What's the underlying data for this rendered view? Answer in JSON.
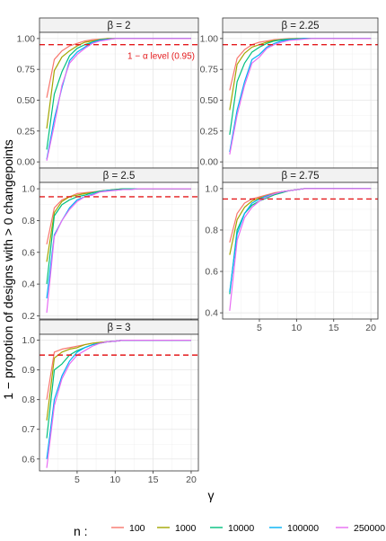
{
  "chart_data": {
    "type": "line",
    "ylabel": "1 − propotion of designs with > 0 changepoints",
    "xlabel": "γ",
    "legend": {
      "title": "n :",
      "placement": "bottom",
      "entries": [
        "100",
        "1000",
        "10000",
        "100000",
        "250000"
      ]
    },
    "series_colors": [
      "#F8766D",
      "#A3A500",
      "#00BF7D",
      "#00B0F6",
      "#E76BF3"
    ],
    "reference_line": {
      "y": 0.95,
      "color": "#e41a1c",
      "label": "1 − α level (0.95)"
    },
    "grid": true,
    "x": [
      1,
      2,
      3,
      4,
      5,
      6,
      7,
      8,
      9,
      10,
      11,
      12,
      13,
      14,
      15,
      16,
      17,
      18,
      19,
      20
    ],
    "x_ticks": [
      5,
      10,
      15,
      20
    ],
    "panels": [
      {
        "strip": "β = 2",
        "ylim": [
          -0.05,
          1.05
        ],
        "y_ticks": [
          0.0,
          0.25,
          0.5,
          0.75,
          1.0
        ],
        "y_tick_labels": [
          "0.00",
          "0.25",
          "0.50",
          "0.75",
          "1.00"
        ],
        "show_annotation": true,
        "series": [
          {
            "name": "100",
            "values": [
              0.52,
              0.83,
              0.9,
              0.94,
              0.96,
              0.98,
              0.99,
              0.995,
              1,
              1,
              1,
              1,
              1,
              1,
              1,
              1,
              1,
              1,
              1,
              1
            ]
          },
          {
            "name": "1000",
            "values": [
              0.27,
              0.74,
              0.85,
              0.9,
              0.94,
              0.97,
              0.98,
              0.99,
              1,
              1,
              1,
              1,
              1,
              1,
              1,
              1,
              1,
              1,
              1,
              1
            ]
          },
          {
            "name": "10000",
            "values": [
              0.1,
              0.55,
              0.73,
              0.86,
              0.92,
              0.95,
              0.97,
              0.99,
              0.995,
              1,
              1,
              1,
              1,
              1,
              1,
              1,
              1,
              1,
              1,
              1
            ]
          },
          {
            "name": "100000",
            "values": [
              0.02,
              0.35,
              0.6,
              0.82,
              0.89,
              0.93,
              0.97,
              0.985,
              0.995,
              1,
              1,
              1,
              1,
              1,
              1,
              1,
              1,
              1,
              1,
              1
            ]
          },
          {
            "name": "250000",
            "values": [
              0.01,
              0.3,
              0.62,
              0.8,
              0.87,
              0.92,
              0.96,
              0.98,
              0.99,
              1,
              1,
              1,
              1,
              1,
              1,
              1,
              1,
              1,
              1,
              1
            ]
          }
        ]
      },
      {
        "strip": "β = 2.25",
        "ylim": [
          -0.05,
          1.05
        ],
        "y_ticks": [
          0.0,
          0.25,
          0.5,
          0.75,
          1.0
        ],
        "y_tick_labels": [
          "0.00",
          "0.25",
          "0.50",
          "0.75",
          "1.00"
        ],
        "show_annotation": false,
        "series": [
          {
            "name": "100",
            "values": [
              0.58,
              0.84,
              0.91,
              0.95,
              0.97,
              0.98,
              0.99,
              0.995,
              1,
              1,
              1,
              1,
              1,
              1,
              1,
              1,
              1,
              1,
              1,
              1
            ]
          },
          {
            "name": "1000",
            "values": [
              0.42,
              0.79,
              0.88,
              0.93,
              0.95,
              0.97,
              0.985,
              0.99,
              0.995,
              1,
              1,
              1,
              1,
              1,
              1,
              1,
              1,
              1,
              1,
              1
            ]
          },
          {
            "name": "10000",
            "values": [
              0.22,
              0.65,
              0.8,
              0.89,
              0.93,
              0.96,
              0.98,
              0.99,
              0.995,
              0.997,
              1,
              1,
              1,
              1,
              1,
              1,
              1,
              1,
              1,
              1
            ]
          },
          {
            "name": "100000",
            "values": [
              0.08,
              0.42,
              0.65,
              0.83,
              0.87,
              0.93,
              0.96,
              0.98,
              0.99,
              0.995,
              1,
              1,
              1,
              1,
              1,
              1,
              1,
              1,
              1,
              1
            ]
          },
          {
            "name": "250000",
            "values": [
              0.06,
              0.38,
              0.62,
              0.8,
              0.85,
              0.92,
              0.95,
              0.97,
              0.985,
              0.99,
              0.995,
              1,
              1,
              1,
              1,
              1,
              1,
              1,
              1,
              1
            ]
          }
        ]
      },
      {
        "strip": "β = 2.5",
        "ylim": [
          0.18,
          1.04
        ],
        "y_ticks": [
          0.2,
          0.4,
          0.6,
          0.8,
          1.0
        ],
        "y_tick_labels": [
          "0.2",
          "0.4",
          "0.6",
          "0.8",
          "1.0"
        ],
        "show_annotation": false,
        "series": [
          {
            "name": "100",
            "values": [
              0.65,
              0.88,
              0.93,
              0.95,
              0.97,
              0.975,
              0.98,
              0.985,
              0.99,
              0.995,
              1,
              1,
              1,
              1,
              1,
              1,
              1,
              1,
              1,
              1
            ]
          },
          {
            "name": "1000",
            "values": [
              0.54,
              0.85,
              0.92,
              0.95,
              0.96,
              0.97,
              0.975,
              0.985,
              0.99,
              0.995,
              1,
              1,
              1,
              1,
              1,
              1,
              1,
              1,
              1,
              1
            ]
          },
          {
            "name": "10000",
            "values": [
              0.4,
              0.83,
              0.9,
              0.93,
              0.95,
              0.96,
              0.975,
              0.985,
              0.99,
              0.995,
              1,
              1,
              1,
              1,
              1,
              1,
              1,
              1,
              1,
              1
            ]
          },
          {
            "name": "100000",
            "values": [
              0.31,
              0.71,
              0.8,
              0.88,
              0.93,
              0.95,
              0.965,
              0.98,
              0.99,
              0.99,
              0.995,
              0.995,
              1,
              1,
              1,
              1,
              1,
              1,
              1,
              1
            ]
          },
          {
            "name": "250000",
            "values": [
              0.22,
              0.7,
              0.8,
              0.87,
              0.92,
              0.95,
              0.96,
              0.98,
              0.985,
              0.99,
              0.995,
              0.995,
              1,
              1,
              1,
              1,
              1,
              1,
              1,
              1
            ]
          }
        ]
      },
      {
        "strip": "β = 2.75",
        "ylim": [
          0.37,
          1.03
        ],
        "y_ticks": [
          0.4,
          0.6,
          0.8,
          1.0
        ],
        "y_tick_labels": [
          "0.4",
          "0.6",
          "0.8",
          "1.0"
        ],
        "show_annotation": false,
        "series": [
          {
            "name": "100",
            "values": [
              0.74,
              0.88,
              0.93,
              0.95,
              0.96,
              0.97,
              0.98,
              0.985,
              0.99,
              0.995,
              1,
              1,
              1,
              1,
              1,
              1,
              1,
              1,
              1,
              1
            ]
          },
          {
            "name": "1000",
            "values": [
              0.68,
              0.85,
              0.91,
              0.94,
              0.955,
              0.965,
              0.975,
              0.985,
              0.99,
              0.995,
              1,
              1,
              1,
              1,
              1,
              1,
              1,
              1,
              1,
              1
            ]
          },
          {
            "name": "10000",
            "values": [
              0.49,
              0.8,
              0.88,
              0.92,
              0.94,
              0.955,
              0.97,
              0.98,
              0.99,
              0.995,
              1,
              1,
              1,
              1,
              1,
              1,
              1,
              1,
              1,
              1
            ]
          },
          {
            "name": "100000",
            "values": [
              0.5,
              0.78,
              0.88,
              0.93,
              0.95,
              0.965,
              0.975,
              0.985,
              0.99,
              0.995,
              1,
              1,
              1,
              1,
              1,
              1,
              1,
              1,
              1,
              1
            ]
          },
          {
            "name": "250000",
            "values": [
              0.41,
              0.75,
              0.86,
              0.91,
              0.94,
              0.96,
              0.975,
              0.985,
              0.99,
              0.995,
              1,
              1,
              1,
              1,
              1,
              1,
              1,
              1,
              1,
              1
            ]
          }
        ]
      },
      {
        "strip": "β = 3",
        "ylim": [
          0.56,
          1.02
        ],
        "y_ticks": [
          0.6,
          0.7,
          0.8,
          0.9,
          1.0
        ],
        "y_tick_labels": [
          "0.6",
          "0.7",
          "0.8",
          "0.9",
          "1.0"
        ],
        "show_annotation": false,
        "series": [
          {
            "name": "100",
            "values": [
              0.8,
              0.96,
              0.97,
              0.975,
              0.98,
              0.985,
              0.99,
              0.993,
              0.995,
              0.997,
              1,
              1,
              1,
              1,
              1,
              1,
              1,
              1,
              1,
              1
            ]
          },
          {
            "name": "1000",
            "values": [
              0.73,
              0.94,
              0.96,
              0.97,
              0.975,
              0.985,
              0.99,
              0.993,
              0.995,
              0.997,
              1,
              1,
              1,
              1,
              1,
              1,
              1,
              1,
              1,
              1
            ]
          },
          {
            "name": "10000",
            "values": [
              0.67,
              0.9,
              0.92,
              0.95,
              0.965,
              0.975,
              0.985,
              0.99,
              0.995,
              0.997,
              1,
              1,
              1,
              1,
              1,
              1,
              1,
              1,
              1,
              1
            ]
          },
          {
            "name": "100000",
            "values": [
              0.6,
              0.8,
              0.88,
              0.93,
              0.96,
              0.975,
              0.985,
              0.99,
              0.995,
              0.997,
              1,
              1,
              1,
              1,
              1,
              1,
              1,
              1,
              1,
              1
            ]
          },
          {
            "name": "250000",
            "values": [
              0.57,
              0.78,
              0.87,
              0.92,
              0.95,
              0.965,
              0.98,
              0.99,
              0.995,
              0.997,
              1,
              1,
              1,
              1,
              1,
              1,
              1,
              1,
              1,
              1
            ]
          }
        ]
      }
    ]
  }
}
